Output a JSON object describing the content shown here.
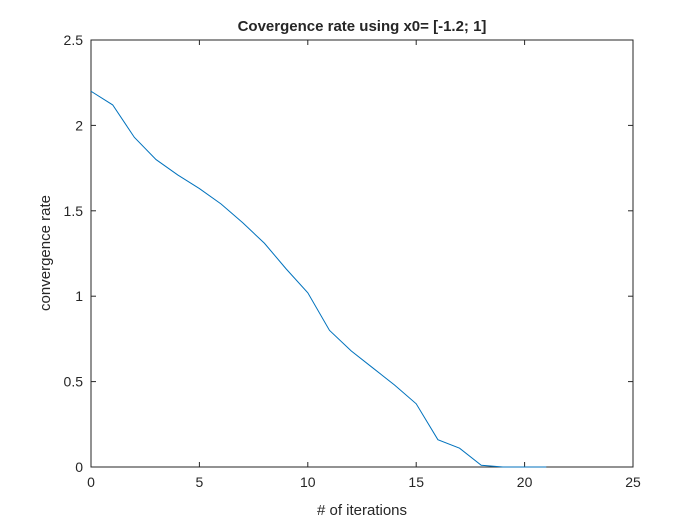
{
  "chart_data": {
    "type": "line",
    "title": "Covergence rate using x0= [-1.2; 1]",
    "xlabel": "# of iterations",
    "ylabel": "convergence rate",
    "xlim": [
      0,
      25
    ],
    "ylim": [
      0,
      2.5
    ],
    "xticks": [
      0,
      5,
      10,
      15,
      20,
      25
    ],
    "yticks": [
      0,
      0.5,
      1,
      1.5,
      2,
      2.5
    ],
    "xtick_labels": [
      "0",
      "5",
      "10",
      "15",
      "20",
      "25"
    ],
    "ytick_labels": [
      "0",
      "0.5",
      "1",
      "1.5",
      "2",
      "2.5"
    ],
    "grid": false,
    "series": [
      {
        "color": "#0072bd",
        "x": [
          0,
          1,
          2,
          3,
          4,
          5,
          6,
          7,
          8,
          9,
          10,
          11,
          12,
          13,
          14,
          15,
          16,
          17,
          18,
          19,
          20,
          21
        ],
        "y": [
          2.2,
          2.12,
          1.93,
          1.8,
          1.71,
          1.63,
          1.54,
          1.43,
          1.31,
          1.16,
          1.02,
          0.8,
          0.68,
          0.58,
          0.48,
          0.37,
          0.16,
          0.11,
          0.01,
          0.0,
          0.0,
          0.0
        ]
      }
    ]
  }
}
